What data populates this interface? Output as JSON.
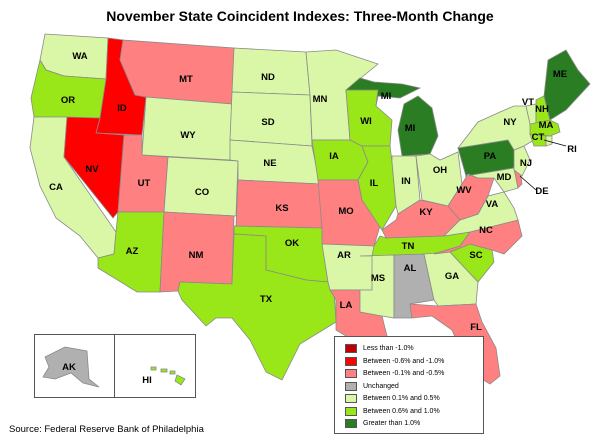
{
  "title": "November State Coincident Indexes: Three-Month Change",
  "source": "Source: Federal Reserve Bank of Philadelphia",
  "legend": [
    {
      "label": "Less than -1.0%",
      "color": "#c00000"
    },
    {
      "label": "Between -0.6% and -1.0%",
      "color": "#ff0000"
    },
    {
      "label": "Between -0.1% and -0.5%",
      "color": "#ff8080"
    },
    {
      "label": "Unchanged",
      "color": "#b0b0b0"
    },
    {
      "label": "Between 0.1% and 0.5%",
      "color": "#d9f7a6"
    },
    {
      "label": "Between 0.6% and 1.0%",
      "color": "#99e619"
    },
    {
      "label": "Greater than 1.0%",
      "color": "#2b7d24"
    }
  ],
  "states": {
    "WA": "Between 0.1% and 0.5%",
    "OR": "Between 0.6% and 1.0%",
    "CA": "Between 0.1% and 0.5%",
    "ID": "Between -0.6% and -1.0%",
    "NV": "Between -0.6% and -1.0%",
    "MT": "Between -0.1% and -0.5%",
    "WY": "Between 0.1% and 0.5%",
    "UT": "Between -0.1% and -0.5%",
    "CO": "Between 0.1% and 0.5%",
    "AZ": "Between 0.6% and 1.0%",
    "NM": "Between -0.1% and -0.5%",
    "ND": "Between 0.1% and 0.5%",
    "SD": "Between 0.1% and 0.5%",
    "NE": "Between 0.1% and 0.5%",
    "KS": "Between -0.1% and -0.5%",
    "OK": "Between 0.6% and 1.0%",
    "TX": "Between 0.6% and 1.0%",
    "MN": "Between 0.1% and 0.5%",
    "IA": "Between 0.6% and 1.0%",
    "MO": "Between -0.1% and -0.5%",
    "AR": "Between 0.1% and 0.5%",
    "LA": "Between -0.1% and -0.5%",
    "WI": "Between 0.6% and 1.0%",
    "IL": "Between 0.6% and 1.0%",
    "MI": "Greater than 1.0%",
    "IN": "Between 0.1% and 0.5%",
    "OH": "Between 0.1% and 0.5%",
    "KY": "Between -0.1% and -0.5%",
    "TN": "Between 0.6% and 1.0%",
    "MS": "Between 0.1% and 0.5%",
    "AL": "Unchanged",
    "GA": "Between 0.1% and 0.5%",
    "FL": "Between -0.1% and -0.5%",
    "SC": "Between 0.6% and 1.0%",
    "NC": "Between -0.1% and -0.5%",
    "VA": "Between 0.1% and 0.5%",
    "WV": "Between -0.1% and -0.5%",
    "MD": "Between 0.1% and 0.5%",
    "DE": "Between -0.1% and -0.5%",
    "PA": "Greater than 1.0%",
    "NJ": "Between 0.1% and 0.5%",
    "NY": "Between 0.1% and 0.5%",
    "CT": "Between 0.6% and 1.0%",
    "RI": "Between 0.1% and 0.5%",
    "MA": "Between 0.6% and 1.0%",
    "VT": "Between 0.1% and 0.5%",
    "NH": "Between 0.6% and 1.0%",
    "ME": "Greater than 1.0%",
    "AK": "Unchanged",
    "HI": "Between 0.6% and 1.0%"
  }
}
